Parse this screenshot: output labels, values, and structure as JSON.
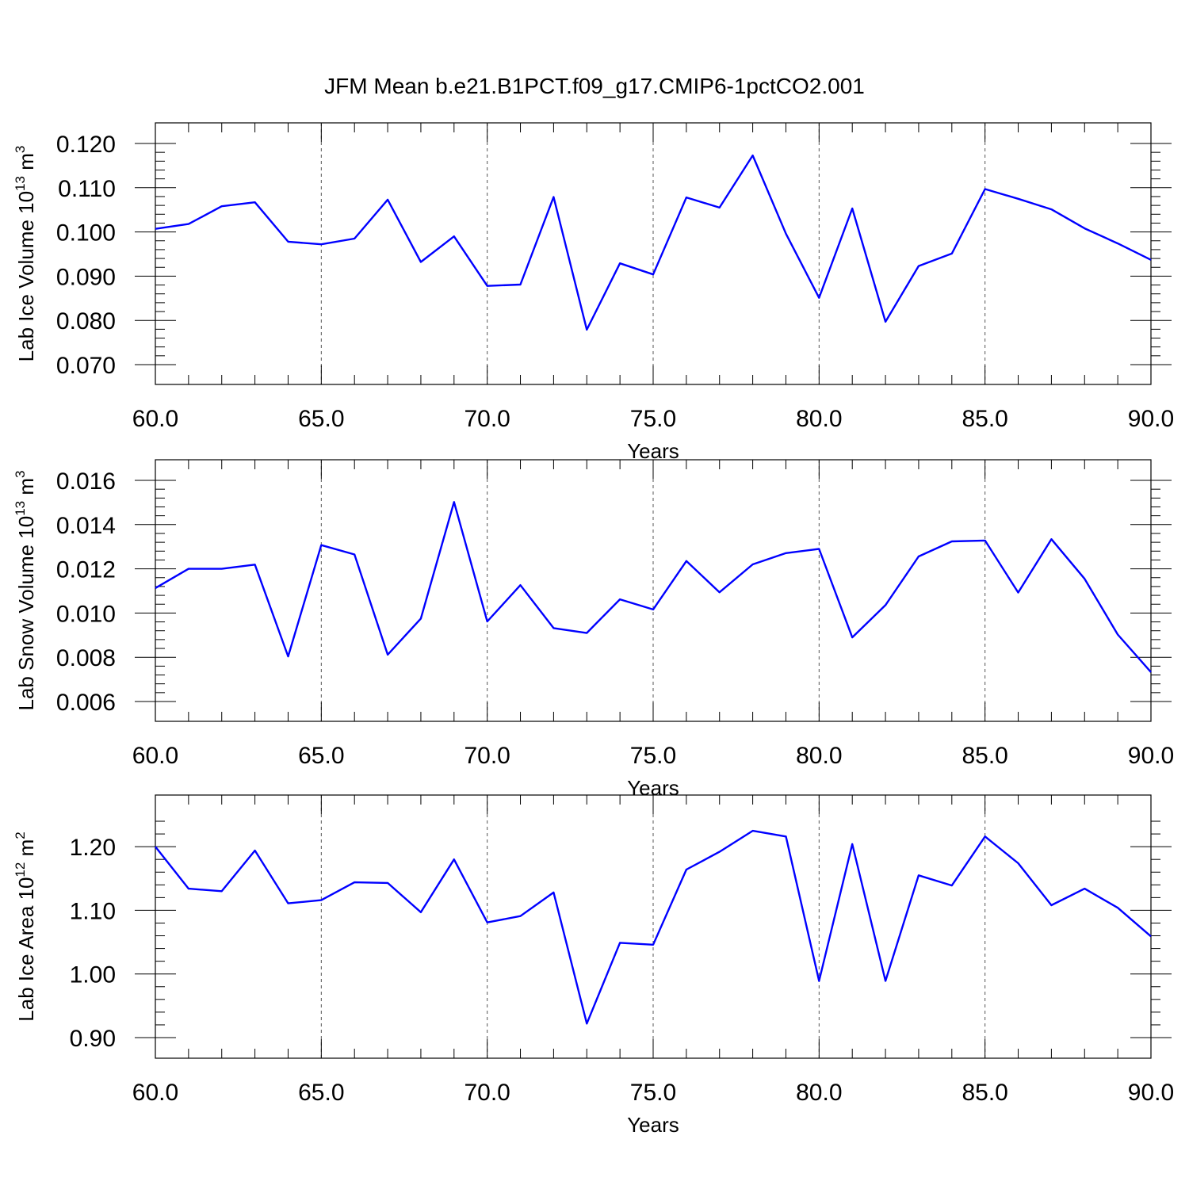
{
  "title": "JFM Mean b.e21.B1PCT.f09_g17.CMIP6-1pctCO2.001",
  "chart_data": [
    {
      "type": "line",
      "ylabel": "Lab Ice Volume 10",
      "ylabel_exponent": "13",
      "ylabel_unit": " m",
      "ylabel_unit_exponent": "3",
      "xlabel": "Years",
      "xlim": [
        60,
        90
      ],
      "ylim": [
        0.07,
        0.12
      ],
      "xticks": [
        "60.0",
        "65.0",
        "70.0",
        "75.0",
        "80.0",
        "85.0",
        "90.0"
      ],
      "yticks": [
        "0.070",
        "0.080",
        "0.090",
        "0.100",
        "0.110",
        "0.120"
      ],
      "x": [
        60,
        61,
        62,
        63,
        64,
        65,
        66,
        67,
        68,
        69,
        70,
        71,
        72,
        73,
        74,
        75,
        76,
        77,
        78,
        79,
        80,
        81,
        82,
        83,
        84,
        85,
        86,
        87,
        88,
        89,
        90
      ],
      "y": [
        0.1007,
        0.1018,
        0.1058,
        0.1067,
        0.0978,
        0.0972,
        0.0985,
        0.1073,
        0.0932,
        0.099,
        0.0878,
        0.0881,
        0.1079,
        0.0779,
        0.0929,
        0.0904,
        0.1078,
        0.1055,
        0.1173,
        0.0996,
        0.0851,
        0.1053,
        0.0797,
        0.0923,
        0.0951,
        0.1097,
        0.1075,
        0.1051,
        0.1008,
        0.0974,
        0.0937
      ],
      "color": "#0000ff"
    },
    {
      "type": "line",
      "ylabel": "Lab Snow Volume 10",
      "ylabel_exponent": "13",
      "ylabel_unit": " m",
      "ylabel_unit_exponent": "3",
      "xlabel": "Years",
      "xlim": [
        60,
        90
      ],
      "ylim": [
        0.006,
        0.016
      ],
      "xticks": [
        "60.0",
        "65.0",
        "70.0",
        "75.0",
        "80.0",
        "85.0",
        "90.0"
      ],
      "yticks": [
        "0.006",
        "0.008",
        "0.010",
        "0.012",
        "0.014",
        "0.016"
      ],
      "x": [
        60,
        61,
        62,
        63,
        64,
        65,
        66,
        67,
        68,
        69,
        70,
        71,
        72,
        73,
        74,
        75,
        76,
        77,
        78,
        79,
        80,
        81,
        82,
        83,
        84,
        85,
        86,
        87,
        88,
        89,
        90
      ],
      "y": [
        0.01113,
        0.012,
        0.012,
        0.01219,
        0.00804,
        0.01307,
        0.01265,
        0.00812,
        0.00975,
        0.01502,
        0.00962,
        0.01126,
        0.00932,
        0.0091,
        0.01062,
        0.01016,
        0.01235,
        0.01094,
        0.0122,
        0.01271,
        0.0129,
        0.0089,
        0.01036,
        0.01256,
        0.01324,
        0.01328,
        0.01093,
        0.01334,
        0.01155,
        0.00903,
        0.00733
      ],
      "color": "#0000ff"
    },
    {
      "type": "line",
      "ylabel": "Lab Ice Area 10",
      "ylabel_exponent": "12",
      "ylabel_unit": " m",
      "ylabel_unit_exponent": "2",
      "xlabel": "Years",
      "xlim": [
        60,
        90
      ],
      "ylim": [
        0.9,
        1.25
      ],
      "xticks": [
        "60.0",
        "65.0",
        "70.0",
        "75.0",
        "80.0",
        "85.0",
        "90.0"
      ],
      "yticks": [
        "0.90",
        "1.00",
        "1.10",
        "1.20"
      ],
      "x": [
        60,
        61,
        62,
        63,
        64,
        65,
        66,
        67,
        68,
        69,
        70,
        71,
        72,
        73,
        74,
        75,
        76,
        77,
        78,
        79,
        80,
        81,
        82,
        83,
        84,
        85,
        86,
        87,
        88,
        89,
        90
      ],
      "y": [
        1.2,
        1.134,
        1.13,
        1.194,
        1.111,
        1.116,
        1.144,
        1.143,
        1.097,
        1.18,
        1.081,
        1.091,
        1.128,
        0.922,
        1.049,
        1.046,
        1.164,
        1.192,
        1.225,
        1.216,
        0.989,
        1.204,
        0.989,
        1.155,
        1.139,
        1.216,
        1.174,
        1.108,
        1.134,
        1.104,
        1.059
      ],
      "color": "#0000ff"
    }
  ]
}
